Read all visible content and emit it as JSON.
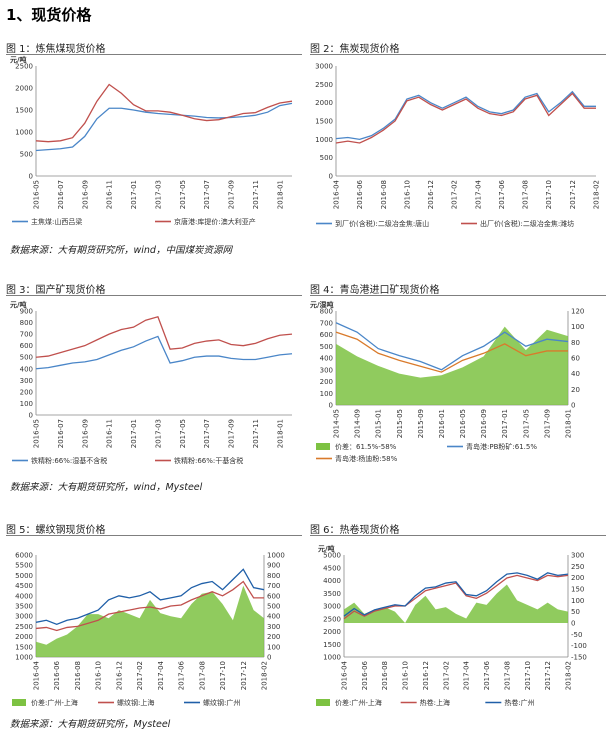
{
  "section_title": "1、现货价格",
  "sources": {
    "row1": "数据来源：大有期货研究所，wind，中国煤炭资源网",
    "row2": "数据来源：大有期货研究所，wind，Mysteel",
    "row3": "数据来源：大有期货研究所，Mysteel"
  },
  "figures": [
    {
      "title": "图 1：炼焦煤现货价格"
    },
    {
      "title": "图 2：焦炭现货价格"
    },
    {
      "title": "图 3：国产矿现货价格"
    },
    {
      "title": "图 4：青岛港进口矿现货价格"
    },
    {
      "title": "图 5：螺纹钢现货价格"
    },
    {
      "title": "图 6：热卷现货价格"
    }
  ],
  "colors": {
    "blue": "#4a86c8",
    "red": "#c0504d",
    "green": "#7dc242",
    "orange": "#d97a2b"
  },
  "chart_data": [
    {
      "type": "line",
      "unit": "元/吨",
      "ylim": [
        0,
        2500
      ],
      "yticks": [
        0,
        500,
        1000,
        1500,
        2000,
        2500
      ],
      "x": [
        "2016-05",
        "2016-06",
        "2016-07",
        "2016-08",
        "2016-09",
        "2016-10",
        "2016-11",
        "2016-12",
        "2017-01",
        "2017-02",
        "2017-03",
        "2017-04",
        "2017-05",
        "2017-06",
        "2017-07",
        "2017-08",
        "2017-09",
        "2017-10",
        "2017-11",
        "2017-12",
        "2018-01",
        "2018-02"
      ],
      "xticks": [
        "2016-05",
        "2016-07",
        "2016-09",
        "2016-11",
        "2017-01",
        "2017-03",
        "2017-05",
        "2017-07",
        "2017-09",
        "2017-11",
        "2018-01"
      ],
      "series": [
        {
          "name": "主焦煤:山西吕梁",
          "color": "#4a86c8",
          "values": [
            580,
            600,
            620,
            660,
            900,
            1300,
            1540,
            1540,
            1500,
            1450,
            1420,
            1400,
            1380,
            1360,
            1330,
            1320,
            1330,
            1350,
            1380,
            1450,
            1600,
            1650
          ]
        },
        {
          "name": "京唐港:库提价:澳大利亚产",
          "color": "#c0504d",
          "values": [
            800,
            780,
            800,
            870,
            1200,
            1700,
            2080,
            1880,
            1620,
            1480,
            1480,
            1450,
            1380,
            1300,
            1260,
            1280,
            1350,
            1420,
            1440,
            1560,
            1660,
            1700
          ]
        }
      ]
    },
    {
      "type": "line",
      "unit": "",
      "ylim": [
        0,
        3000
      ],
      "yticks": [
        0,
        500,
        1000,
        1500,
        2000,
        2500,
        3000
      ],
      "x": [
        "2016-04",
        "2016-05",
        "2016-06",
        "2016-07",
        "2016-08",
        "2016-09",
        "2016-10",
        "2016-11",
        "2016-12",
        "2017-01",
        "2017-02",
        "2017-03",
        "2017-04",
        "2017-05",
        "2017-06",
        "2017-07",
        "2017-08",
        "2017-09",
        "2017-10",
        "2017-11",
        "2017-12",
        "2018-01",
        "2018-02"
      ],
      "xticks": [
        "2016-04",
        "2016-06",
        "2016-08",
        "2016-10",
        "2016-12",
        "2017-02",
        "2017-04",
        "2017-06",
        "2017-08",
        "2017-10",
        "2017-12",
        "2018-02"
      ],
      "series": [
        {
          "name": "到厂价(含税):二级冶金焦:唐山",
          "color": "#4a86c8",
          "values": [
            1020,
            1050,
            1000,
            1100,
            1300,
            1550,
            2100,
            2200,
            2000,
            1850,
            2000,
            2150,
            1900,
            1750,
            1700,
            1800,
            2150,
            2250,
            1750,
            2000,
            2300,
            1900,
            1900
          ]
        },
        {
          "name": "出厂价(含税):二级冶金焦:潍坊",
          "color": "#c0504d",
          "values": [
            900,
            950,
            900,
            1050,
            1250,
            1500,
            2050,
            2150,
            1950,
            1800,
            1950,
            2100,
            1850,
            1700,
            1650,
            1750,
            2100,
            2200,
            1650,
            1950,
            2250,
            1850,
            1850
          ]
        }
      ]
    },
    {
      "type": "line",
      "unit": "元/吨",
      "ylim": [
        0,
        900
      ],
      "yticks": [
        0,
        100,
        200,
        300,
        400,
        500,
        600,
        700,
        800,
        900
      ],
      "x": [
        "2016-05",
        "2016-06",
        "2016-07",
        "2016-08",
        "2016-09",
        "2016-10",
        "2016-11",
        "2016-12",
        "2017-01",
        "2017-02",
        "2017-03",
        "2017-04",
        "2017-05",
        "2017-06",
        "2017-07",
        "2017-08",
        "2017-09",
        "2017-10",
        "2017-11",
        "2017-12",
        "2018-01",
        "2018-02"
      ],
      "xticks": [
        "2016-05",
        "2016-07",
        "2016-09",
        "2016-11",
        "2017-01",
        "2017-03",
        "2017-05",
        "2017-07",
        "2017-09",
        "2017-11",
        "2018-01"
      ],
      "series": [
        {
          "name": "铁精粉:66%:湿基不含税",
          "color": "#4a86c8",
          "values": [
            400,
            410,
            430,
            450,
            460,
            480,
            520,
            560,
            590,
            640,
            680,
            450,
            470,
            500,
            510,
            510,
            490,
            480,
            480,
            500,
            520,
            530
          ]
        },
        {
          "name": "铁精粉:66%:干基含税",
          "color": "#c0504d",
          "values": [
            500,
            510,
            540,
            570,
            600,
            650,
            700,
            740,
            760,
            820,
            850,
            570,
            580,
            620,
            640,
            650,
            610,
            600,
            620,
            660,
            690,
            700
          ]
        }
      ]
    },
    {
      "type": "line",
      "unit": "元/湿吨",
      "ylim": [
        0,
        800
      ],
      "yticks": [
        0,
        100,
        200,
        300,
        400,
        500,
        600,
        700,
        800
      ],
      "ylim_right": [
        0,
        120
      ],
      "yticks_right": [
        0,
        20,
        40,
        60,
        80,
        100,
        120
      ],
      "x": [
        "2014-05",
        "2014-09",
        "2015-01",
        "2015-05",
        "2015-09",
        "2016-01",
        "2016-05",
        "2016-09",
        "2017-01",
        "2017-05",
        "2017-09",
        "2018-01"
      ],
      "xticks": [
        "2014-05",
        "2014-09",
        "2015-01",
        "2015-05",
        "2015-09",
        "2016-01",
        "2016-05",
        "2016-09",
        "2017-01",
        "2017-05",
        "2017-09",
        "2018-01"
      ],
      "series": [
        {
          "name": "价差：61.5%-58%",
          "axis": "right",
          "color": "#7dc242",
          "values": [
            78,
            62,
            50,
            40,
            35,
            38,
            48,
            62,
            100,
            70,
            96,
            88
          ]
        },
        {
          "name": "青岛港:PB粉矿:61.5%",
          "axis": "left",
          "color": "#4a86c8",
          "values": [
            700,
            620,
            480,
            420,
            370,
            300,
            420,
            500,
            620,
            500,
            560,
            540
          ]
        },
        {
          "name": "青岛港:杨迪粉:58%",
          "axis": "left",
          "color": "#d97a2b",
          "values": [
            620,
            560,
            440,
            380,
            330,
            280,
            380,
            440,
            520,
            420,
            460,
            460
          ]
        }
      ]
    },
    {
      "type": "line",
      "unit": "",
      "ylim": [
        1000,
        6000
      ],
      "yticks": [
        1000,
        1500,
        2000,
        2500,
        3000,
        3500,
        4000,
        4500,
        5000,
        5500,
        6000
      ],
      "ylim_right": [
        0,
        1000
      ],
      "yticks_right": [
        0,
        100,
        200,
        300,
        400,
        500,
        600,
        700,
        800,
        900,
        1000
      ],
      "x": [
        "2016-04",
        "2016-05",
        "2016-06",
        "2016-07",
        "2016-08",
        "2016-09",
        "2016-10",
        "2016-11",
        "2016-12",
        "2017-01",
        "2017-02",
        "2017-03",
        "2017-04",
        "2017-05",
        "2017-06",
        "2017-07",
        "2017-08",
        "2017-09",
        "2017-10",
        "2017-11",
        "2017-12",
        "2018-01",
        "2018-02"
      ],
      "xticks": [
        "2016-04",
        "2016-06",
        "2016-08",
        "2016-10",
        "2016-12",
        "2017-02",
        "2017-04",
        "2017-06",
        "2017-08",
        "2017-10",
        "2017-12",
        "2018-02"
      ],
      "series": [
        {
          "name": "价差:广州-上海",
          "axis": "right",
          "color": "#7dc242",
          "values": [
            150,
            120,
            180,
            220,
            300,
            420,
            420,
            380,
            460,
            420,
            380,
            560,
            430,
            400,
            380,
            520,
            620,
            640,
            520,
            360,
            700,
            460,
            380
          ]
        },
        {
          "name": "螺纹钢:上海",
          "axis": "left",
          "color": "#c0504d",
          "values": [
            2400,
            2450,
            2300,
            2450,
            2500,
            2650,
            2800,
            3100,
            3200,
            3300,
            3400,
            3450,
            3350,
            3500,
            3550,
            3800,
            4000,
            4200,
            4000,
            4300,
            4700,
            3900,
            3900
          ]
        },
        {
          "name": "螺纹钢:广州",
          "axis": "left",
          "color": "#1f5fa8",
          "values": [
            2700,
            2800,
            2600,
            2800,
            2900,
            3100,
            3300,
            3800,
            4000,
            3900,
            4000,
            4200,
            3800,
            3900,
            4000,
            4400,
            4600,
            4700,
            4300,
            4800,
            5300,
            4400,
            4300
          ]
        }
      ]
    },
    {
      "type": "line",
      "unit": "元/吨",
      "ylim": [
        1000,
        5000
      ],
      "yticks": [
        1000,
        1500,
        2000,
        2500,
        3000,
        3500,
        4000,
        4500,
        5000
      ],
      "ylim_right": [
        -150,
        300
      ],
      "yticks_right": [
        -150,
        -100,
        -50,
        0,
        50,
        100,
        150,
        200,
        250,
        300
      ],
      "x": [
        "2016-04",
        "2016-05",
        "2016-06",
        "2016-07",
        "2016-08",
        "2016-09",
        "2016-10",
        "2016-11",
        "2016-12",
        "2017-01",
        "2017-02",
        "2017-03",
        "2017-04",
        "2017-05",
        "2017-06",
        "2017-07",
        "2017-08",
        "2017-09",
        "2017-10",
        "2017-11",
        "2017-12",
        "2018-01",
        "2018-02"
      ],
      "xticks": [
        "2016-04",
        "2016-06",
        "2016-08",
        "2016-10",
        "2016-12",
        "2017-02",
        "2017-04",
        "2017-06",
        "2017-08",
        "2017-10",
        "2017-12",
        "2018-02"
      ],
      "series": [
        {
          "name": "价差:广州-上海",
          "axis": "right",
          "color": "#7dc242",
          "values": [
            60,
            90,
            40,
            60,
            70,
            50,
            0,
            80,
            120,
            60,
            70,
            40,
            20,
            90,
            80,
            130,
            170,
            100,
            80,
            60,
            90,
            60,
            50
          ]
        },
        {
          "name": "热卷:上海",
          "axis": "left",
          "color": "#c0504d",
          "values": [
            2500,
            2800,
            2600,
            2800,
            2900,
            3000,
            3000,
            3300,
            3600,
            3700,
            3800,
            3900,
            3400,
            3300,
            3500,
            3800,
            4100,
            4200,
            4100,
            4000,
            4200,
            4150,
            4200
          ]
        },
        {
          "name": "热卷:广州",
          "axis": "left",
          "color": "#1f5fa8",
          "values": [
            2600,
            2900,
            2650,
            2850,
            2950,
            3050,
            3000,
            3400,
            3700,
            3750,
            3900,
            3950,
            3450,
            3400,
            3600,
            3950,
            4250,
            4300,
            4200,
            4050,
            4300,
            4200,
            4250
          ]
        }
      ]
    }
  ]
}
